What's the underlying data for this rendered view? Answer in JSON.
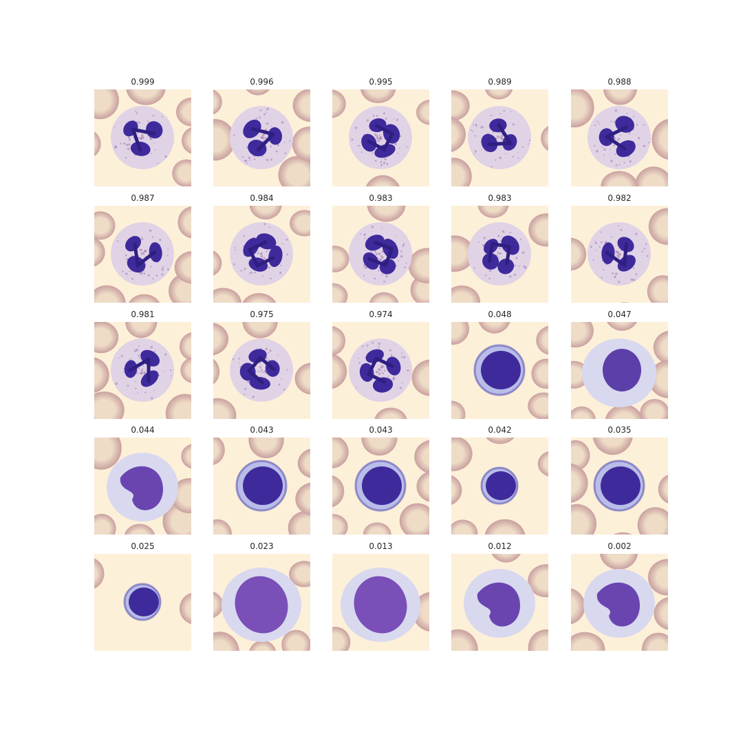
{
  "colors": {
    "background": "#fdf0d8",
    "rbc_rim": "#c9a0a0",
    "rbc_center": "#eedcc6",
    "nucleus": "#3f2a9c",
    "nucleus_dark": "#2e1f80",
    "cytoplasm_granular": "#e0d3e6",
    "cytoplasm_pale": "#d8d9ef",
    "cytoplasm_blue": "#b9bde8"
  },
  "rows": [
    {
      "cells": [
        {
          "score": "0.999",
          "cell_type": "neutrophil"
        },
        {
          "score": "0.996",
          "cell_type": "neutrophil"
        },
        {
          "score": "0.995",
          "cell_type": "neutrophil"
        },
        {
          "score": "0.989",
          "cell_type": "neutrophil"
        },
        {
          "score": "0.988",
          "cell_type": "neutrophil"
        }
      ]
    },
    {
      "cells": [
        {
          "score": "0.987",
          "cell_type": "neutrophil"
        },
        {
          "score": "0.984",
          "cell_type": "neutrophil"
        },
        {
          "score": "0.983",
          "cell_type": "neutrophil"
        },
        {
          "score": "0.983",
          "cell_type": "neutrophil"
        },
        {
          "score": "0.982",
          "cell_type": "neutrophil"
        }
      ]
    },
    {
      "cells": [
        {
          "score": "0.981",
          "cell_type": "neutrophil"
        },
        {
          "score": "0.975",
          "cell_type": "neutrophil"
        },
        {
          "score": "0.974",
          "cell_type": "neutrophil"
        },
        {
          "score": "0.048",
          "cell_type": "lymphocyte"
        },
        {
          "score": "0.047",
          "cell_type": "reactive-lymphocyte"
        }
      ]
    },
    {
      "cells": [
        {
          "score": "0.044",
          "cell_type": "monocyte"
        },
        {
          "score": "0.043",
          "cell_type": "lymphocyte"
        },
        {
          "score": "0.043",
          "cell_type": "lymphocyte"
        },
        {
          "score": "0.042",
          "cell_type": "small-lymphocyte"
        },
        {
          "score": "0.035",
          "cell_type": "lymphocyte"
        }
      ]
    },
    {
      "cells": [
        {
          "score": "0.025",
          "cell_type": "small-lymphocyte"
        },
        {
          "score": "0.023",
          "cell_type": "blast"
        },
        {
          "score": "0.013",
          "cell_type": "blast"
        },
        {
          "score": "0.012",
          "cell_type": "monocyte"
        },
        {
          "score": "0.002",
          "cell_type": "monocyte"
        }
      ]
    }
  ]
}
